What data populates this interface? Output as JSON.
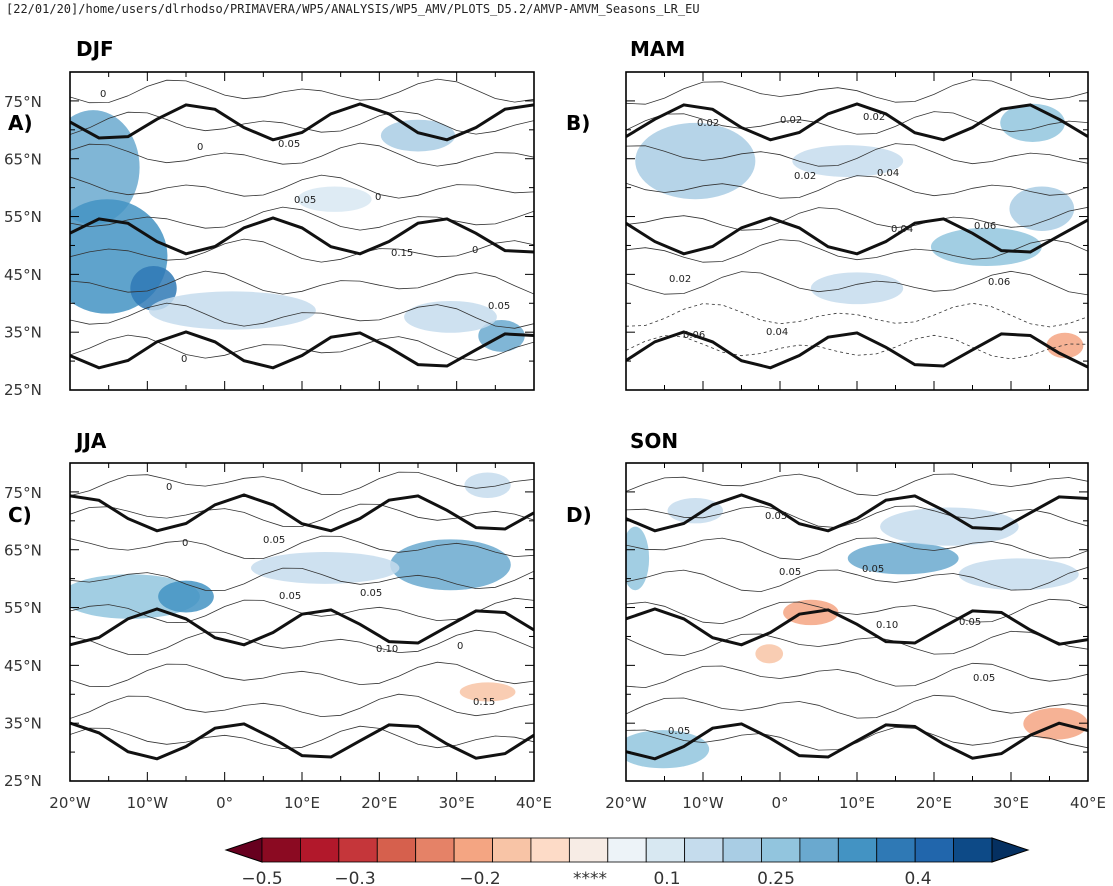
{
  "header": {
    "path": "[22/01/20]/home/users/dlrhodso/PRIMAVERA/WP5/ANALYSIS/WP5_AMV/PLOTS_D5.2/AMVP-AMVM_Seasons_LR_EU"
  },
  "chart_data": {
    "type": "heatmap",
    "x_ticks": [
      "20°W",
      "10°W",
      "0°",
      "10°E",
      "20°E",
      "30°E",
      "40°E"
    ],
    "y_ticks": [
      "75°N",
      "65°N",
      "55°N",
      "45°N",
      "35°N",
      "25°N"
    ],
    "xlim": [
      -20,
      40
    ],
    "ylim": [
      25,
      80
    ],
    "colorbar": {
      "levels": [
        -0.5,
        -0.45,
        -0.4,
        -0.35,
        -0.3,
        -0.25,
        -0.2,
        -0.15,
        -0.1,
        -0.05,
        0,
        0.05,
        0.1,
        0.15,
        0.2,
        0.25,
        0.3,
        0.35,
        0.4,
        0.45,
        0.5
      ],
      "colors": [
        "#67001f",
        "#8b0a22",
        "#b2182b",
        "#c5363a",
        "#d6604d",
        "#e58267",
        "#f4a582",
        "#f8c4a6",
        "#fddbc7",
        "#f7ece5",
        "#edf3f8",
        "#d8e8f2",
        "#c5dced",
        "#a9cde4",
        "#92c5de",
        "#6aa9cf",
        "#4393c3",
        "#2f79b5",
        "#2166ac",
        "#0d4a87",
        "#053061"
      ],
      "labels": [
        "−0.5",
        "−0.3",
        "−0.2",
        "****",
        "0.1",
        "0.25",
        "0.4"
      ]
    },
    "panels": [
      {
        "title": "DJF",
        "letter": "A)",
        "contour_labels": [
          "0",
          "0",
          "0.05",
          "0.15",
          "0.05",
          "0",
          "0.05",
          "0",
          "0"
        ]
      },
      {
        "title": "MAM",
        "letter": "B)",
        "contour_labels": [
          "0.02",
          "0.02",
          "0.04",
          "0.06",
          "0.06",
          "0.02",
          "0.04",
          "0.06",
          "0.02",
          "0.04",
          "0.02"
        ]
      },
      {
        "title": "JJA",
        "letter": "C)",
        "contour_labels": [
          "0",
          "0.05",
          "0.10",
          "0.15",
          "0",
          "0.05",
          "0.05",
          "0"
        ]
      },
      {
        "title": "SON",
        "letter": "D)",
        "contour_labels": [
          "0.05",
          "0.10",
          "0.05",
          "0.05",
          "0.05",
          "0.05",
          "0.05"
        ]
      }
    ]
  }
}
